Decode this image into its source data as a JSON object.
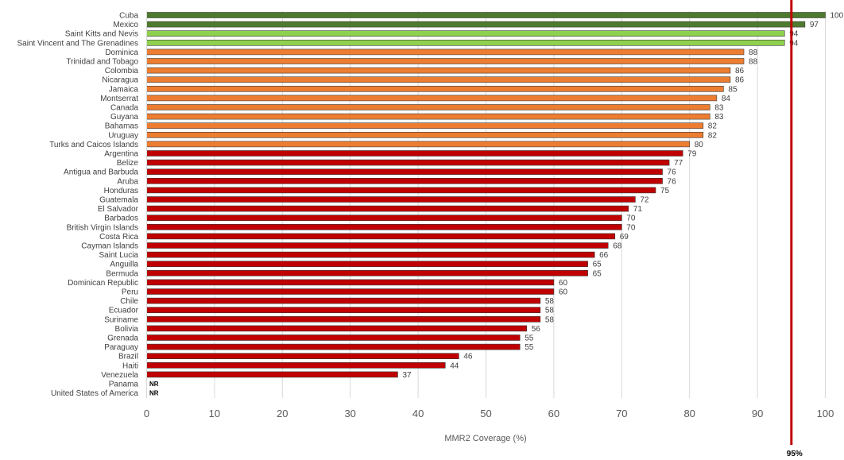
{
  "chart_data": {
    "type": "bar",
    "orientation": "horizontal",
    "xlabel": "MMR2 Coverage (%)",
    "xlim": [
      0,
      100
    ],
    "x_ticks": [
      "0",
      "10",
      "20",
      "30",
      "40",
      "50",
      "60",
      "70",
      "80",
      "90",
      "100"
    ],
    "grid": "vertical",
    "categories": [
      "Cuba",
      "Mexico",
      "Saint Kitts and Nevis",
      "Saint Vincent and The Grenadines",
      "Dominica",
      "Trinidad and Tobago",
      "Colombia",
      "Nicaragua",
      "Jamaica",
      "Montserrat",
      "Canada",
      "Guyana",
      "Bahamas",
      "Uruguay",
      "Turks and Caicos Islands",
      "Argentina",
      "Belize",
      "Antigua and Barbuda",
      "Aruba",
      "Honduras",
      "Guatemala",
      "El Salvador",
      "Barbados",
      "British Virgin Islands",
      "Costa Rica",
      "Cayman Islands",
      "Saint Lucia",
      "Anguilla",
      "Bermuda",
      "Dominican Republic",
      "Peru",
      "Chile",
      "Ecuador",
      "Suriname",
      "Bolivia",
      "Grenada",
      "Paraguay",
      "Brazil",
      "Haiti",
      "Venezuela",
      "Panama",
      "United States of America"
    ],
    "values": [
      100,
      97,
      94,
      94,
      88,
      88,
      86,
      86,
      85,
      84,
      83,
      83,
      82,
      82,
      80,
      79,
      77,
      76,
      76,
      75,
      72,
      71,
      70,
      70,
      69,
      68,
      66,
      65,
      65,
      60,
      60,
      58,
      58,
      58,
      56,
      55,
      55,
      46,
      44,
      37,
      null,
      null
    ],
    "not_reported_label": "NR",
    "reference_line": {
      "value": 95,
      "label": "95%",
      "color": "#c00000"
    },
    "colors": {
      "dark_green": "#4e7a2e",
      "light_green": "#8fd14f",
      "orange": "#ed7d31",
      "red": "#c00000"
    }
  }
}
